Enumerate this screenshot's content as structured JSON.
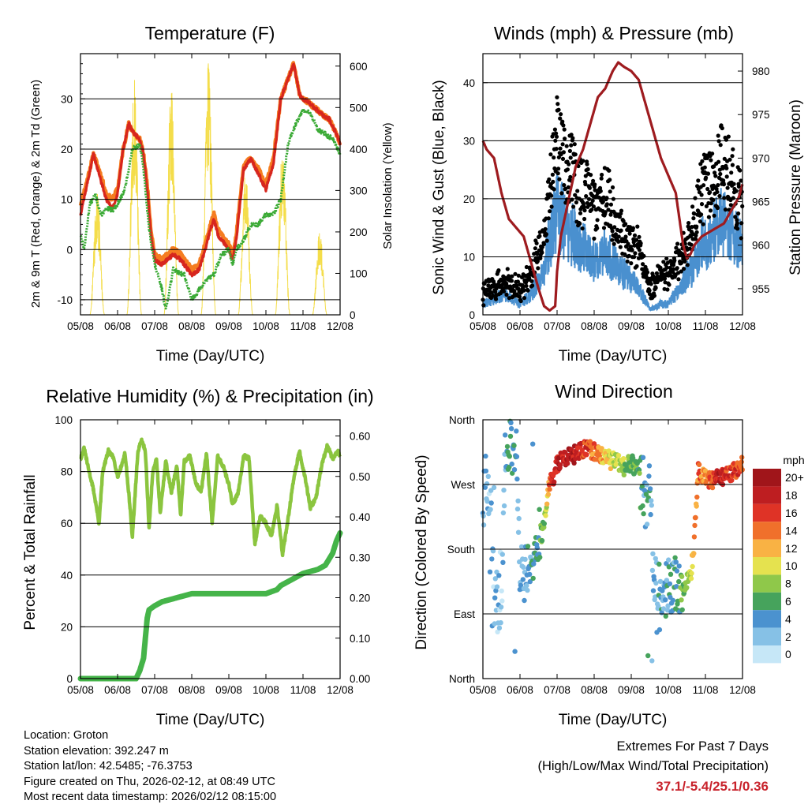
{
  "chart_data": [
    {
      "type": "line",
      "title": "Temperature (F)",
      "xlabel": "Time (Day/UTC)",
      "ylabel": "2m & 9m T (Red, Orange) & 2m Td (Green)",
      "y2label": "Solar Insolation (Yellow)",
      "x_ticks": [
        "05/08",
        "06/08",
        "07/08",
        "08/08",
        "09/08",
        "10/08",
        "11/08",
        "12/08"
      ],
      "xlim": [
        5.0,
        12.0
      ],
      "ylim": [
        -13,
        39
      ],
      "y_ticks": [
        -10,
        0,
        10,
        20,
        30
      ],
      "y2lim": [
        0,
        630
      ],
      "y2_ticks": [
        0,
        100,
        200,
        300,
        400,
        500,
        600
      ],
      "series": [
        {
          "name": "2m T",
          "color": "#d7261e",
          "x": [
            5.0,
            5.15,
            5.35,
            5.5,
            5.7,
            5.85,
            6.0,
            6.15,
            6.3,
            6.45,
            6.6,
            6.7,
            6.8,
            6.9,
            7.0,
            7.2,
            7.5,
            7.7,
            8.0,
            8.2,
            8.4,
            8.5,
            8.6,
            8.7,
            9.0,
            9.1,
            9.2,
            9.4,
            9.6,
            9.8,
            10.0,
            10.2,
            10.4,
            10.6,
            10.75,
            10.9,
            11.0,
            11.2,
            11.5,
            11.7,
            11.9,
            12.0
          ],
          "values": [
            7,
            12,
            19,
            15,
            10,
            8,
            11,
            20,
            25,
            23,
            22,
            19,
            12,
            3,
            -2,
            -3,
            -1,
            -2,
            -5,
            -4,
            1,
            4,
            6,
            3,
            0,
            -2,
            2,
            16,
            18,
            15,
            12,
            17,
            30,
            34,
            37,
            31,
            30,
            29,
            27,
            26,
            23,
            21
          ]
        },
        {
          "name": "9m T",
          "color": "#f57d21",
          "x": [
            5.0,
            5.15,
            5.35,
            5.5,
            5.7,
            5.85,
            6.0,
            6.15,
            6.3,
            6.45,
            6.6,
            6.7,
            6.8,
            6.9,
            7.0,
            7.2,
            7.5,
            7.7,
            8.0,
            8.2,
            8.4,
            8.5,
            8.6,
            8.7,
            9.0,
            9.1,
            9.2,
            9.4,
            9.6,
            9.8,
            10.0,
            10.2,
            10.4,
            10.6,
            10.75,
            10.9,
            11.0,
            11.2,
            11.5,
            11.7,
            11.9,
            12.0
          ],
          "values": [
            9,
            13,
            19,
            16,
            11,
            10,
            12,
            20,
            25,
            23,
            22,
            19,
            13,
            4,
            -1,
            -2,
            0,
            -1,
            -4,
            -3,
            2,
            5,
            7,
            4,
            1,
            -1,
            3,
            17,
            18,
            16,
            13,
            18,
            30,
            34,
            37,
            31,
            30,
            29,
            27,
            26,
            23,
            21
          ]
        },
        {
          "name": "2m Td",
          "color": "#3aaa35",
          "x": [
            5.0,
            5.1,
            5.25,
            5.4,
            5.55,
            5.7,
            5.9,
            6.0,
            6.2,
            6.4,
            6.6,
            6.7,
            6.85,
            7.0,
            7.2,
            7.3,
            7.5,
            7.8,
            8.0,
            8.2,
            8.4,
            8.6,
            8.8,
            9.0,
            9.1,
            9.2,
            9.4,
            9.6,
            9.8,
            10.0,
            10.2,
            10.4,
            10.6,
            10.8,
            11.0,
            11.2,
            11.4,
            11.6,
            11.8,
            12.0
          ],
          "values": [
            3,
            0,
            9,
            11,
            7,
            8,
            8,
            9,
            12,
            20,
            21,
            16,
            4,
            -3,
            -8,
            -12,
            -4,
            -5,
            -10,
            -8,
            -6,
            -5,
            -1,
            0,
            -3,
            0,
            2,
            5,
            5,
            7,
            7,
            10,
            21,
            25,
            28,
            27,
            24,
            23,
            22,
            19
          ]
        },
        {
          "name": "Solar Insolation",
          "color": "#f4dd4a",
          "axis": "y2",
          "type": "pulses",
          "x": [
            5.45,
            6.45,
            7.45,
            8.45,
            9.45,
            10.45,
            11.45
          ],
          "values": [
            300,
            570,
            570,
            610,
            360,
            420,
            210
          ]
        }
      ]
    },
    {
      "type": "scatter",
      "title": "Winds (mph) & Pressure (mb)",
      "xlabel": "Time (Day/UTC)",
      "ylabel": "Sonic Wind & Gust (Blue, Black)",
      "y2label": "Station Pressure (Maroon)",
      "x_ticks": [
        "05/08",
        "06/08",
        "07/08",
        "08/08",
        "09/08",
        "10/08",
        "11/08",
        "12/08"
      ],
      "xlim": [
        5.0,
        12.0
      ],
      "ylim": [
        0,
        45
      ],
      "y_ticks": [
        0,
        10,
        20,
        30,
        40
      ],
      "y2lim": [
        952,
        982
      ],
      "y2_ticks": [
        955,
        960,
        965,
        970,
        975,
        980
      ],
      "series": [
        {
          "name": "Gust",
          "color": "#000000",
          "x": [
            5.0,
            5.3,
            5.6,
            6.0,
            6.3,
            6.6,
            6.8,
            7.0,
            7.2,
            7.5,
            7.8,
            8.0,
            8.3,
            8.6,
            8.9,
            9.2,
            9.5,
            9.8,
            10.0,
            10.3,
            10.6,
            10.9,
            11.2,
            11.4,
            11.6,
            11.8,
            12.0
          ],
          "values": [
            4,
            5,
            6,
            5,
            7,
            14,
            22,
            32,
            28,
            24,
            21,
            20,
            22,
            17,
            13,
            12,
            5,
            7,
            8,
            10,
            14,
            22,
            24,
            28,
            26,
            22,
            20
          ]
        },
        {
          "name": "Wind",
          "color": "#4a90cf",
          "x": [
            5.0,
            5.3,
            5.6,
            6.0,
            6.3,
            6.6,
            6.8,
            7.0,
            7.2,
            7.5,
            7.8,
            8.0,
            8.3,
            8.6,
            8.9,
            9.2,
            9.5,
            9.8,
            10.0,
            10.3,
            10.6,
            10.9,
            11.2,
            11.4,
            11.6,
            11.8,
            12.0
          ],
          "values": [
            2,
            3,
            4,
            2,
            4,
            7,
            14,
            19,
            17,
            14,
            12,
            10,
            12,
            9,
            7,
            5,
            1,
            2,
            2,
            5,
            8,
            13,
            15,
            17,
            16,
            14,
            13
          ]
        },
        {
          "name": "Station Pressure",
          "color": "#9e1b1f",
          "axis": "y2",
          "x": [
            5.0,
            5.1,
            5.3,
            5.5,
            5.7,
            5.9,
            6.1,
            6.3,
            6.5,
            6.65,
            6.8,
            6.95,
            7.0,
            7.1,
            7.3,
            7.5,
            7.7,
            7.9,
            8.1,
            8.3,
            8.5,
            8.65,
            8.8,
            9.0,
            9.2,
            9.4,
            9.6,
            9.8,
            10.0,
            10.2,
            10.4,
            10.5,
            10.6,
            10.7,
            10.9,
            11.1,
            11.3,
            11.5,
            11.7,
            11.9,
            12.0
          ],
          "values": [
            972,
            971,
            970,
            966,
            963,
            962,
            961,
            958,
            955,
            953,
            952.5,
            953,
            957,
            961,
            965,
            969,
            971,
            974,
            977,
            978,
            980,
            981,
            980.5,
            980,
            979,
            976,
            973,
            970,
            968,
            966,
            960,
            958.5,
            959,
            960,
            961,
            961.5,
            962,
            962.5,
            964,
            965.5,
            967
          ]
        }
      ]
    },
    {
      "type": "line",
      "title": "Relative Humidity (%) & Precipitation (in)",
      "xlabel": "Time (Day/UTC)",
      "ylabel": "Percent & Total Rainfall",
      "x_ticks": [
        "05/08",
        "06/08",
        "07/08",
        "08/08",
        "09/08",
        "10/08",
        "11/08",
        "12/08"
      ],
      "xlim": [
        5.0,
        12.0
      ],
      "ylim": [
        0,
        100
      ],
      "y_ticks": [
        0,
        20,
        40,
        60,
        80,
        100
      ],
      "y2lim": [
        0,
        0.64
      ],
      "y2_ticks": [
        "0.00",
        "0.10",
        "0.20",
        "0.30",
        "0.40",
        "0.50",
        "0.60"
      ],
      "series": [
        {
          "name": "Relative Humidity",
          "color": "#8bc53f",
          "x": [
            5.0,
            5.1,
            5.2,
            5.35,
            5.5,
            5.6,
            5.75,
            5.9,
            6.0,
            6.1,
            6.2,
            6.3,
            6.4,
            6.55,
            6.65,
            6.75,
            6.85,
            6.95,
            7.05,
            7.15,
            7.3,
            7.45,
            7.6,
            7.7,
            7.8,
            7.95,
            8.1,
            8.25,
            8.4,
            8.55,
            8.7,
            8.85,
            9.0,
            9.1,
            9.25,
            9.4,
            9.55,
            9.7,
            9.85,
            10.0,
            10.15,
            10.3,
            10.45,
            10.6,
            10.75,
            10.9,
            11.05,
            11.2,
            11.35,
            11.5,
            11.65,
            11.8,
            11.95,
            12.0
          ],
          "values": [
            85,
            89,
            82,
            73,
            60,
            80,
            88,
            85,
            78,
            82,
            87,
            72,
            55,
            88,
            92,
            88,
            58,
            80,
            85,
            64,
            84,
            72,
            82,
            63,
            84,
            86,
            76,
            72,
            87,
            60,
            86,
            82,
            75,
            67,
            72,
            86,
            85,
            52,
            63,
            60,
            55,
            67,
            48,
            62,
            77,
            88,
            78,
            66,
            70,
            82,
            90,
            85,
            88,
            85
          ]
        },
        {
          "name": "Total Precipitation",
          "color": "#45b449",
          "axis": "y2",
          "x": [
            5.0,
            6.0,
            6.5,
            6.6,
            6.7,
            6.75,
            6.8,
            6.85,
            7.0,
            7.2,
            7.6,
            8.0,
            8.5,
            9.0,
            9.5,
            10.0,
            10.3,
            10.4,
            10.8,
            11.0,
            11.4,
            11.6,
            11.8,
            11.9,
            12.0
          ],
          "values": [
            0.0,
            0.0,
            0.0,
            0.02,
            0.05,
            0.1,
            0.15,
            0.17,
            0.18,
            0.19,
            0.2,
            0.21,
            0.21,
            0.21,
            0.21,
            0.21,
            0.22,
            0.23,
            0.25,
            0.26,
            0.27,
            0.28,
            0.31,
            0.34,
            0.36
          ]
        }
      ]
    },
    {
      "type": "scatter",
      "title": "Wind Direction",
      "xlabel": "Time (Day/UTC)",
      "ylabel": "Direction (Colored By Speed)",
      "x_ticks": [
        "05/08",
        "06/08",
        "07/08",
        "08/08",
        "09/08",
        "10/08",
        "11/08",
        "12/08"
      ],
      "xlim": [
        5.0,
        12.0
      ],
      "ylim": [
        0,
        360
      ],
      "y_tick_labels": [
        "North",
        "East",
        "South",
        "West",
        "North"
      ],
      "y_tick_values": [
        0,
        90,
        180,
        270,
        360
      ],
      "colorbar": {
        "title": "mph",
        "labels": [
          "0",
          "2",
          "4",
          "6",
          "8",
          "10",
          "12",
          "14",
          "16",
          "18",
          "20+"
        ],
        "colors": [
          "#c6e7f7",
          "#86c1e6",
          "#4b92cf",
          "#46a35c",
          "#8fc84a",
          "#e5e24f",
          "#f9b244",
          "#f0702b",
          "#df3326",
          "#be1e21",
          "#a0151a"
        ]
      },
      "series": [
        {
          "name": "Wind direction",
          "x": [
            5.0,
            5.1,
            5.2,
            5.3,
            5.4,
            5.5,
            5.6,
            5.7,
            5.8,
            5.9,
            6.0,
            6.1,
            6.2,
            6.3,
            6.4,
            6.5,
            6.6,
            6.7,
            6.8,
            6.9,
            7.0,
            7.2,
            7.4,
            7.6,
            7.8,
            8.0,
            8.2,
            8.4,
            8.6,
            8.8,
            9.0,
            9.2,
            9.4,
            9.5,
            9.6,
            9.7,
            9.8,
            10.0,
            10.2,
            10.4,
            10.5,
            10.6,
            10.7,
            10.8,
            11.0,
            11.2,
            11.4,
            11.6,
            11.8,
            12.0
          ],
          "values": [
            250,
            260,
            240,
            130,
            110,
            95,
            300,
            330,
            320,
            310,
            150,
            140,
            150,
            145,
            160,
            210,
            200,
            240,
            270,
            280,
            300,
            305,
            310,
            315,
            320,
            315,
            310,
            305,
            300,
            295,
            300,
            290,
            230,
            300,
            140,
            130,
            120,
            125,
            130,
            120,
            135,
            140,
            190,
            290,
            280,
            275,
            280,
            285,
            290,
            300
          ],
          "speeds": [
            2,
            3,
            2,
            2,
            2,
            1,
            4,
            6,
            5,
            4,
            3,
            3,
            4,
            4,
            6,
            5,
            7,
            8,
            16,
            17,
            18,
            18,
            19,
            17,
            16,
            14,
            12,
            10,
            9,
            8,
            7,
            6,
            4,
            4,
            3,
            3,
            4,
            4,
            5,
            6,
            8,
            10,
            12,
            14,
            14,
            16,
            18,
            16,
            16,
            14
          ]
        }
      ]
    }
  ],
  "info": {
    "location": "Location: Groton",
    "elevation": "Station elevation: 392.247 m",
    "latlon": "Station lat/lon: 42.5485; -76.3753",
    "created": "Figure created on Thu, 2026-02-12, at 08:49 UTC",
    "recent": "Most recent data timestamp: 2026/02/12 08:15:00"
  },
  "extremes": {
    "title": "Extremes For Past 7 Days",
    "subtitle": "(High/Low/Max Wind/Total Precipitation)",
    "value": "37.1/-5.4/25.1/0.36"
  }
}
